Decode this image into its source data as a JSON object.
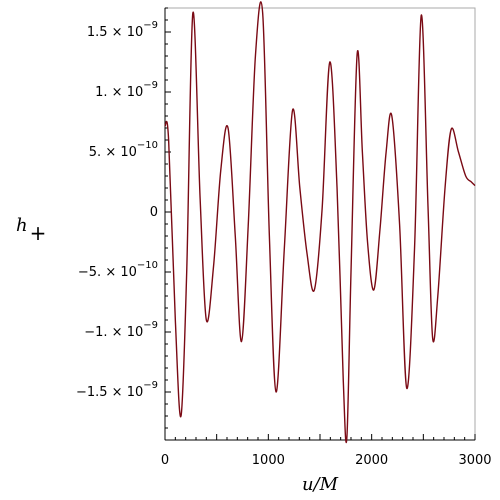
{
  "chart_data": {
    "type": "line",
    "title": "",
    "xlabel": "u/M",
    "ylabel": "h",
    "ylabel_subscript": "+",
    "xlim": [
      0,
      3000
    ],
    "ylim": [
      -1.9e-09,
      1.7e-09
    ],
    "grid": false,
    "legend": "none",
    "x_ticks": [
      {
        "value": 0,
        "label": "0"
      },
      {
        "value": 1000,
        "label": "1000"
      },
      {
        "value": 2000,
        "label": "2000"
      },
      {
        "value": 3000,
        "label": "3000"
      }
    ],
    "y_ticks": [
      {
        "value": 1.5e-09,
        "mantissa": "1.5 × 10",
        "exponent": "−9"
      },
      {
        "value": 1e-09,
        "mantissa": "1. × 10",
        "exponent": "−9"
      },
      {
        "value": 5e-10,
        "mantissa": "5. × 10",
        "exponent": "−10"
      },
      {
        "value": 0,
        "mantissa": "0",
        "exponent": ""
      },
      {
        "value": -5e-10,
        "mantissa": "−5. × 10",
        "exponent": "−10"
      },
      {
        "value": -1e-09,
        "mantissa": "−1. × 10",
        "exponent": "−9"
      },
      {
        "value": -1.5e-09,
        "mantissa": "−1.5 × 10",
        "exponent": "−9"
      }
    ],
    "series": [
      {
        "color": "#7a0a14",
        "x": [
          0,
          35,
          100,
          155,
          210,
          270,
          340,
          400,
          470,
          540,
          610,
          680,
          740,
          805,
          875,
          945,
          1010,
          1075,
          1155,
          1235,
          1305,
          1375,
          1445,
          1520,
          1595,
          1665,
          1725,
          1760,
          1800,
          1860,
          1910,
          1960,
          2020,
          2080,
          2140,
          2195,
          2270,
          2340,
          2415,
          2480,
          2545,
          2590,
          2640,
          2710,
          2770,
          2840,
          2910,
          2965,
          3000
        ],
        "y": [
          7.2e-10,
          6e-10,
          -9e-10,
          -1.7e-09,
          -5e-10,
          1.66e-09,
          1.1e-10,
          -9e-10,
          -4.5e-10,
          3.5e-10,
          7e-10,
          -2e-10,
          -1.08e-09,
          -1.2e-10,
          1.3e-09,
          1.66e-09,
          -2e-10,
          -1.5e-09,
          -3e-10,
          8.5e-10,
          2e-10,
          -3.5e-10,
          -6.5e-10,
          2e-11,
          1.25e-09,
          2e-10,
          -1.4e-09,
          -1.88e-09,
          -5e-10,
          1.32e-09,
          5e-10,
          -2.5e-10,
          -6.5e-10,
          -1.5e-10,
          5e-10,
          8e-10,
          -1e-10,
          -1.47e-09,
          -3e-10,
          1.64e-09,
          5e-11,
          -1.05e-09,
          -7e-10,
          2e-10,
          6.9e-10,
          5e-10,
          3e-10,
          2.5e-10,
          2.2e-10
        ]
      }
    ]
  }
}
